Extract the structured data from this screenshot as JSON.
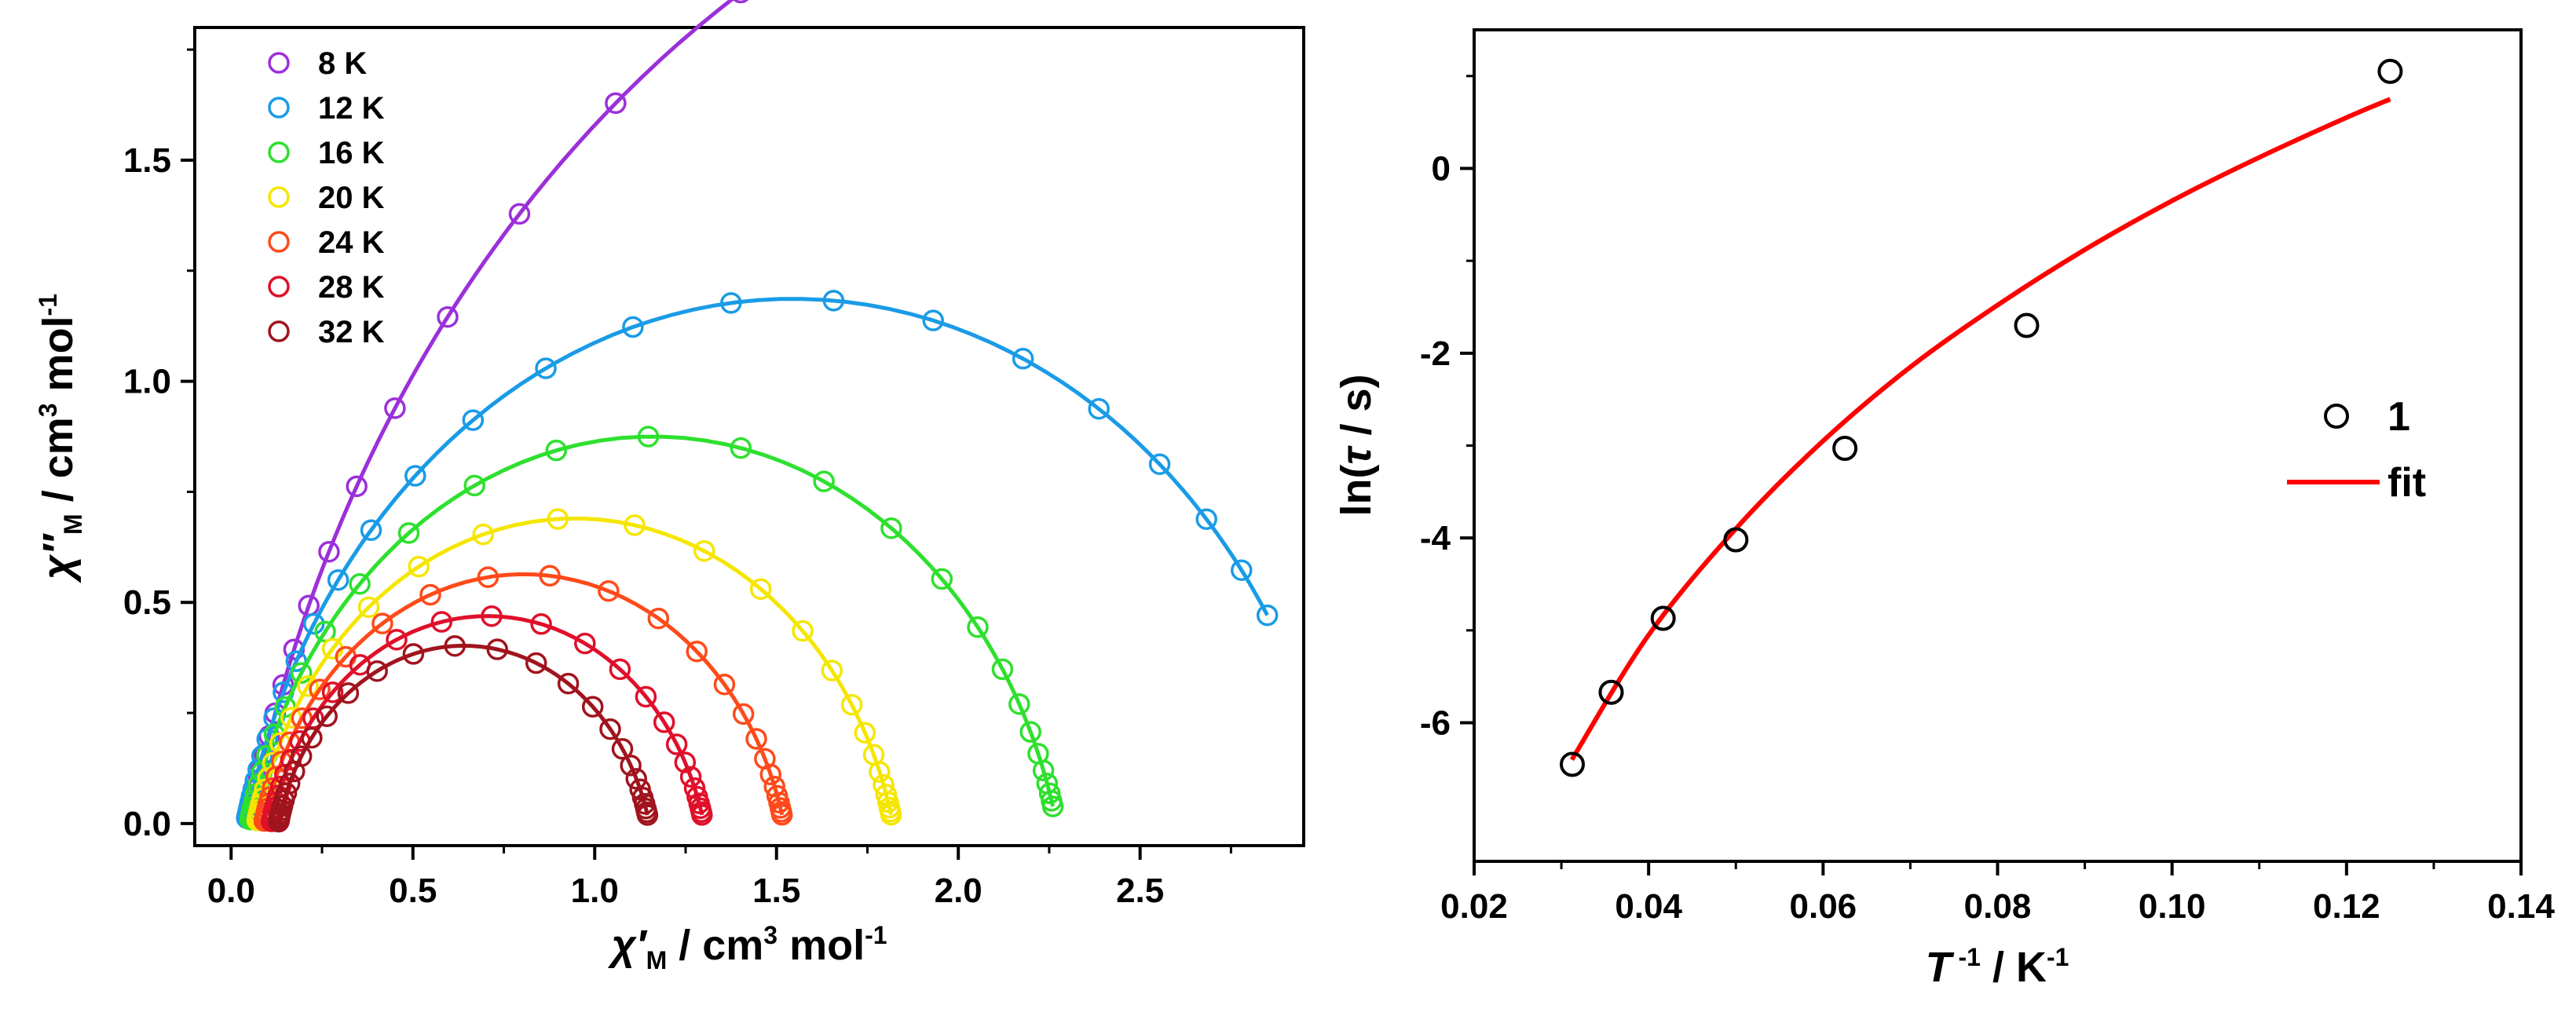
{
  "chart_data": [
    {
      "type": "scatter",
      "panel": "left",
      "title": "",
      "xlabel": "χ′M / cm3 mol-1",
      "ylabel": "χ″M / cm3 mol-1",
      "xlabel_parts": {
        "sym": "χ′",
        "sub": "M",
        "unit": " / cm",
        "sup": "3",
        "unit2": " mol",
        "sup2": "-1"
      },
      "ylabel_parts": {
        "sym": "χ″",
        "sub": "M",
        "unit": " / cm",
        "sup": "3",
        "unit2": " mol",
        "sup2": "-1"
      },
      "xlim": [
        -0.1,
        2.95
      ],
      "ylim": [
        -0.05,
        1.8
      ],
      "xticks": [
        "0.0",
        "0.5",
        "1.0",
        "1.5",
        "2.0",
        "2.5"
      ],
      "xtick_values": [
        0,
        0.5,
        1.0,
        1.5,
        2.0,
        2.5
      ],
      "yticks": [
        "0.0",
        "0.5",
        "1.0",
        "1.5"
      ],
      "ytick_values": [
        0,
        0.5,
        1.0,
        1.5
      ],
      "legend_position": "top-left",
      "series": [
        {
          "name": "8 K",
          "color": "#9b30d9",
          "chi_s": 0.05,
          "chi_t": 6.0,
          "alpha": 0.15,
          "fit_end": 1.78,
          "data_end": 1.83,
          "n_points": 22
        },
        {
          "name": "12 K",
          "color": "#1a9be6",
          "chi_s": 0.04,
          "chi_t": 3.05,
          "alpha": 0.15,
          "fit_end": 2.85,
          "data_end": 2.85,
          "n_points": 32
        },
        {
          "name": "16 K",
          "color": "#2ee02e",
          "chi_s": 0.05,
          "chi_t": 2.27,
          "alpha": 0.15,
          "fit_end": 2.26,
          "data_end": 2.26,
          "n_points": 34
        },
        {
          "name": "20 K",
          "color": "#f5e600",
          "chi_s": 0.07,
          "chi_t": 1.82,
          "alpha": 0.15,
          "fit_end": 1.815,
          "data_end": 1.815,
          "n_points": 34
        },
        {
          "name": "24 K",
          "color": "#ff4a1a",
          "chi_s": 0.09,
          "chi_t": 1.52,
          "alpha": 0.15,
          "fit_end": 1.515,
          "data_end": 1.515,
          "n_points": 34
        },
        {
          "name": "28 K",
          "color": "#e0102a",
          "chi_s": 0.11,
          "chi_t": 1.3,
          "alpha": 0.15,
          "fit_end": 1.295,
          "data_end": 1.295,
          "n_points": 34
        },
        {
          "name": "32 K",
          "color": "#a0141e",
          "chi_s": 0.13,
          "chi_t": 1.15,
          "alpha": 0.15,
          "fit_end": 1.145,
          "data_end": 1.145,
          "n_points": 34
        }
      ]
    },
    {
      "type": "scatter",
      "panel": "right",
      "title": "",
      "xlabel": "T-1 / K-1",
      "ylabel": "ln(τ / s)",
      "xlabel_parts": {
        "sym": "T",
        "sup": " -1",
        "unit": " / K",
        "sup2": "-1"
      },
      "ylabel_parts": {
        "pre": "ln(",
        "sym": "τ",
        "post": " / s)"
      },
      "xlim": [
        0.02,
        0.14
      ],
      "ylim": [
        -7.5,
        1.5
      ],
      "xticks": [
        "0.02",
        "0.04",
        "0.06",
        "0.08",
        "0.10",
        "0.12",
        "0.14"
      ],
      "xtick_values": [
        0.02,
        0.04,
        0.06,
        0.08,
        0.1,
        0.12,
        0.14
      ],
      "yticks": [
        "-6",
        "-4",
        "-2",
        "0"
      ],
      "ytick_values": [
        -6,
        -4,
        -2,
        0
      ],
      "legend_position": "right",
      "series": [
        {
          "name": "1",
          "marker": "open-circle",
          "color": "#000000",
          "x": [
            0.03125,
            0.03571,
            0.04167,
            0.05,
            0.0625,
            0.08333,
            0.125
          ],
          "y": [
            -6.45,
            -5.67,
            -4.87,
            -4.02,
            -3.03,
            -1.7,
            1.05
          ]
        },
        {
          "name": "fit",
          "marker": "line",
          "color": "#ff0000",
          "x": [
            0.0312,
            0.04,
            0.05,
            0.06,
            0.07,
            0.08,
            0.09,
            0.1,
            0.11,
            0.12,
            0.125
          ],
          "y": [
            -6.4,
            -5.05,
            -3.9,
            -2.95,
            -2.15,
            -1.48,
            -0.88,
            -0.35,
            0.12,
            0.55,
            0.75
          ]
        }
      ]
    }
  ]
}
